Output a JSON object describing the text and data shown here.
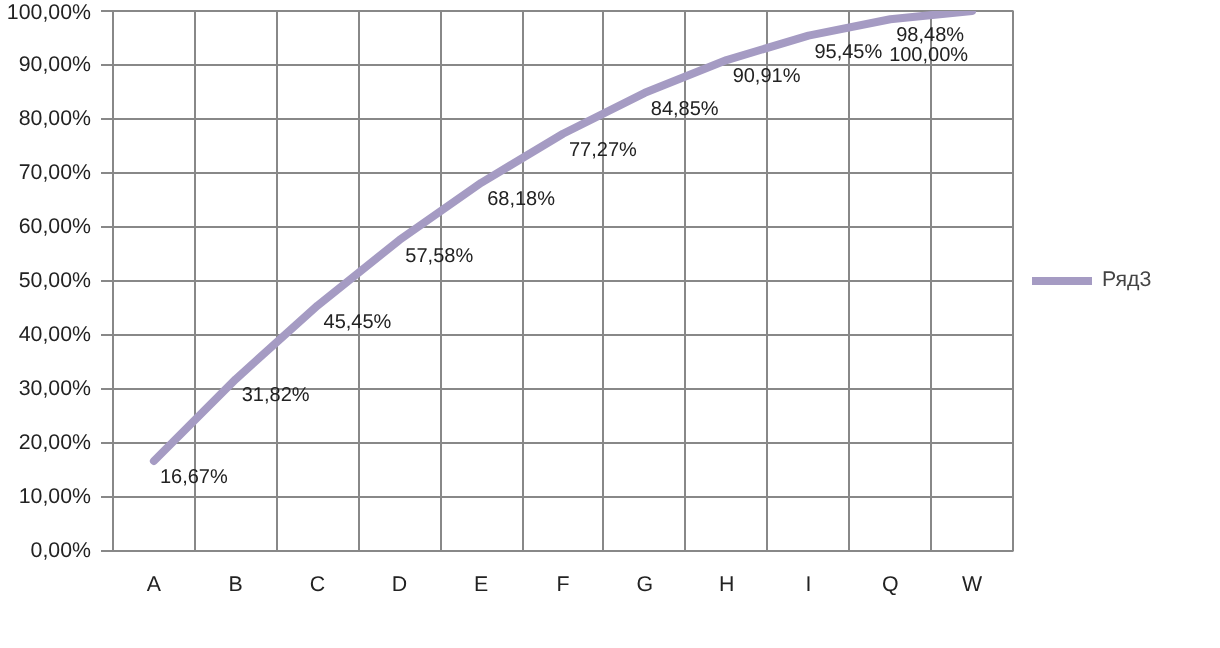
{
  "chart_data": {
    "type": "line",
    "categories": [
      "A",
      "B",
      "C",
      "D",
      "E",
      "F",
      "G",
      "H",
      "I",
      "Q",
      "W"
    ],
    "series": [
      {
        "name": "Ряд3",
        "color": "#a59bc3",
        "values": [
          16.67,
          31.82,
          45.45,
          57.58,
          68.18,
          77.27,
          84.85,
          90.91,
          95.45,
          98.48,
          100
        ],
        "value_labels": [
          "16,67%",
          "31,82%",
          "45,45%",
          "57,58%",
          "68,18%",
          "77,27%",
          "84,85%",
          "90,91%",
          "95,45%",
          "98,48%",
          "100,00%"
        ]
      }
    ],
    "ylim": [
      0,
      100
    ],
    "yticks": [
      {
        "value": 0,
        "label": "0,00%"
      },
      {
        "value": 10,
        "label": "10,00%"
      },
      {
        "value": 20,
        "label": "20,00%"
      },
      {
        "value": 30,
        "label": "30,00%"
      },
      {
        "value": 40,
        "label": "40,00%"
      },
      {
        "value": 50,
        "label": "50,00%"
      },
      {
        "value": 60,
        "label": "60,00%"
      },
      {
        "value": 70,
        "label": "70,00%"
      },
      {
        "value": 80,
        "label": "80,00%"
      },
      {
        "value": 90,
        "label": "90,00%"
      },
      {
        "value": 100,
        "label": "100,00%"
      }
    ],
    "grid": true,
    "legend": "right",
    "marker": "none",
    "line_style": "solid"
  }
}
